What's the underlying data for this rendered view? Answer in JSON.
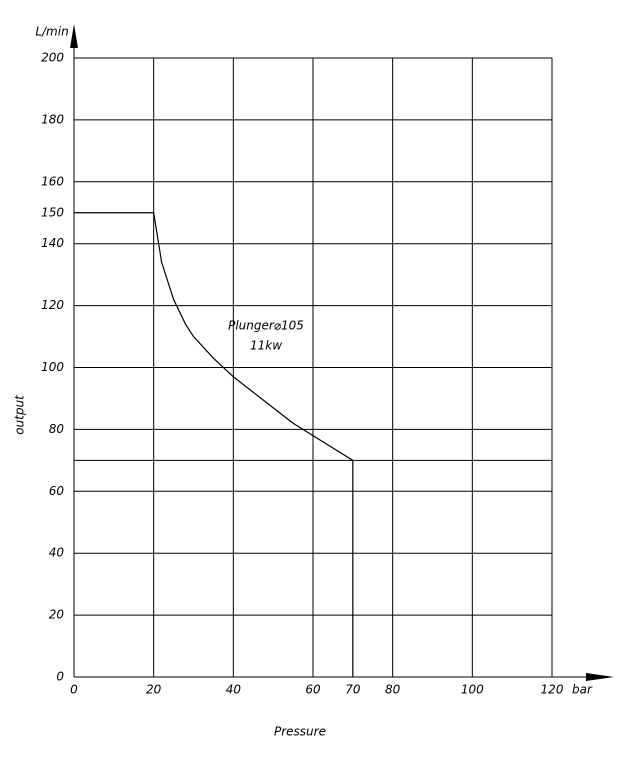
{
  "chart_data": {
    "type": "line",
    "y_unit": "L/min",
    "x_unit": "bar",
    "ylabel": "output",
    "xlabel": "Pressure",
    "annotations": [
      "Plunger⌀105",
      "11kw"
    ],
    "series": [
      {
        "color": "#000000",
        "x": [
          0,
          20,
          22,
          25,
          28,
          30,
          35,
          40,
          45,
          50,
          55,
          60,
          65,
          70,
          70
        ],
        "values": [
          150,
          150,
          134,
          122,
          114,
          110,
          103,
          97,
          92,
          87,
          82,
          78,
          74,
          70,
          0
        ]
      }
    ],
    "xlim": [
      0,
      120
    ],
    "ylim": [
      0,
      200
    ],
    "xticks": [
      0,
      20,
      40,
      60,
      70,
      80,
      100,
      120
    ],
    "yticks": [
      0,
      20,
      40,
      60,
      80,
      100,
      120,
      140,
      150,
      160,
      180,
      200
    ],
    "xgrid": [
      20,
      40,
      60,
      80,
      100,
      120
    ],
    "ygrid": [
      20,
      40,
      60,
      70,
      80,
      100,
      120,
      140,
      160,
      180,
      200
    ]
  }
}
